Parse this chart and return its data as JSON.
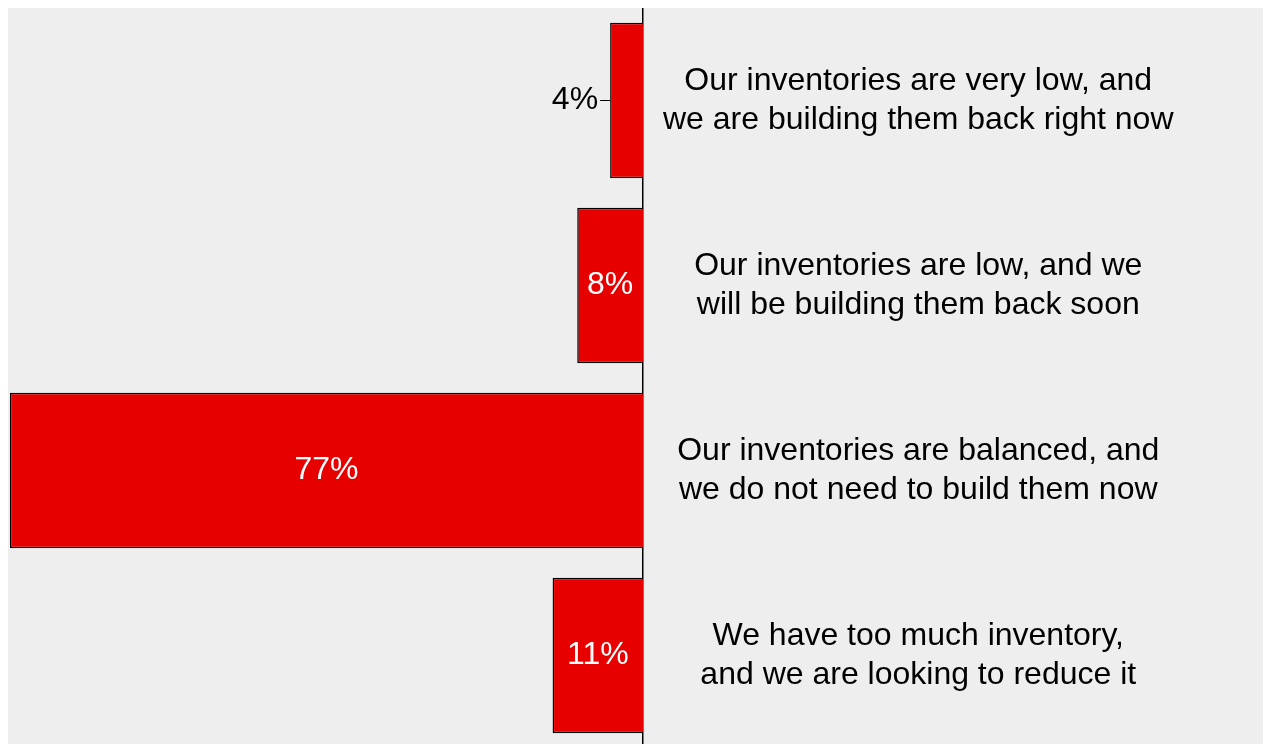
{
  "chart_data": {
    "type": "bar",
    "orientation": "horizontal",
    "categories": [
      "Our inventories are very low, and we are building them back right now",
      "Our inventories are low, and we will be building them back soon",
      "Our inventories are balanced, and we do not need to build them now",
      "We have too much inventory, and we are looking to reduce it"
    ],
    "values": [
      4,
      8,
      77,
      11
    ],
    "value_labels": [
      "4%",
      "8%",
      "77%",
      "11%"
    ],
    "color": "#e60000",
    "xlim": [
      77,
      0
    ],
    "tick_labels": "y",
    "legend": false
  }
}
